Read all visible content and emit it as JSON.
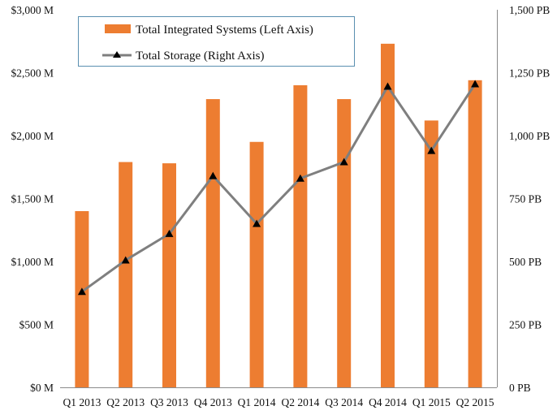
{
  "chart_data": {
    "type": "bar",
    "title": "",
    "xlabel": "",
    "ylabel": "",
    "y2label": "",
    "categories": [
      "Q1 2013",
      "Q2 2013",
      "Q3 2013",
      "Q4 2013",
      "Q1 2014",
      "Q2 2014",
      "Q3 2014",
      "Q4 2014",
      "Q1 2015",
      "Q2 2015"
    ],
    "series": [
      {
        "name": "Total Integrated Systems (Left Axis)",
        "type": "bar",
        "axis": "left",
        "color": "#ED7D31",
        "values": [
          1400,
          1790,
          1780,
          2290,
          1950,
          2400,
          2290,
          2730,
          2120,
          2440
        ]
      },
      {
        "name": "Total Storage (Right Axis)",
        "type": "line",
        "axis": "right",
        "color": "#7F7F7F",
        "marker": "triangle",
        "marker_color": "#000000",
        "values": [
          380,
          505,
          610,
          840,
          650,
          830,
          895,
          1195,
          940,
          1205
        ]
      }
    ],
    "ylim": [
      0,
      3000
    ],
    "y2lim": [
      0,
      1500
    ],
    "y_ticks": [
      {
        "value": 0,
        "label": "$0 M"
      },
      {
        "value": 500,
        "label": "$500 M"
      },
      {
        "value": 1000,
        "label": "$1,000 M"
      },
      {
        "value": 1500,
        "label": "$1,500 M"
      },
      {
        "value": 2000,
        "label": "$2,000 M"
      },
      {
        "value": 2500,
        "label": "$2,500 M"
      },
      {
        "value": 3000,
        "label": "$3,000 M"
      }
    ],
    "y2_ticks": [
      {
        "value": 0,
        "label": "0 PB"
      },
      {
        "value": 250,
        "label": "250 PB"
      },
      {
        "value": 500,
        "label": "500 PB"
      },
      {
        "value": 750,
        "label": "750 PB"
      },
      {
        "value": 1000,
        "label": "1,000 PB"
      },
      {
        "value": 1250,
        "label": "1,250 PB"
      },
      {
        "value": 1500,
        "label": "1,500 PB"
      }
    ],
    "grid": false,
    "legend_position": "top-left"
  }
}
